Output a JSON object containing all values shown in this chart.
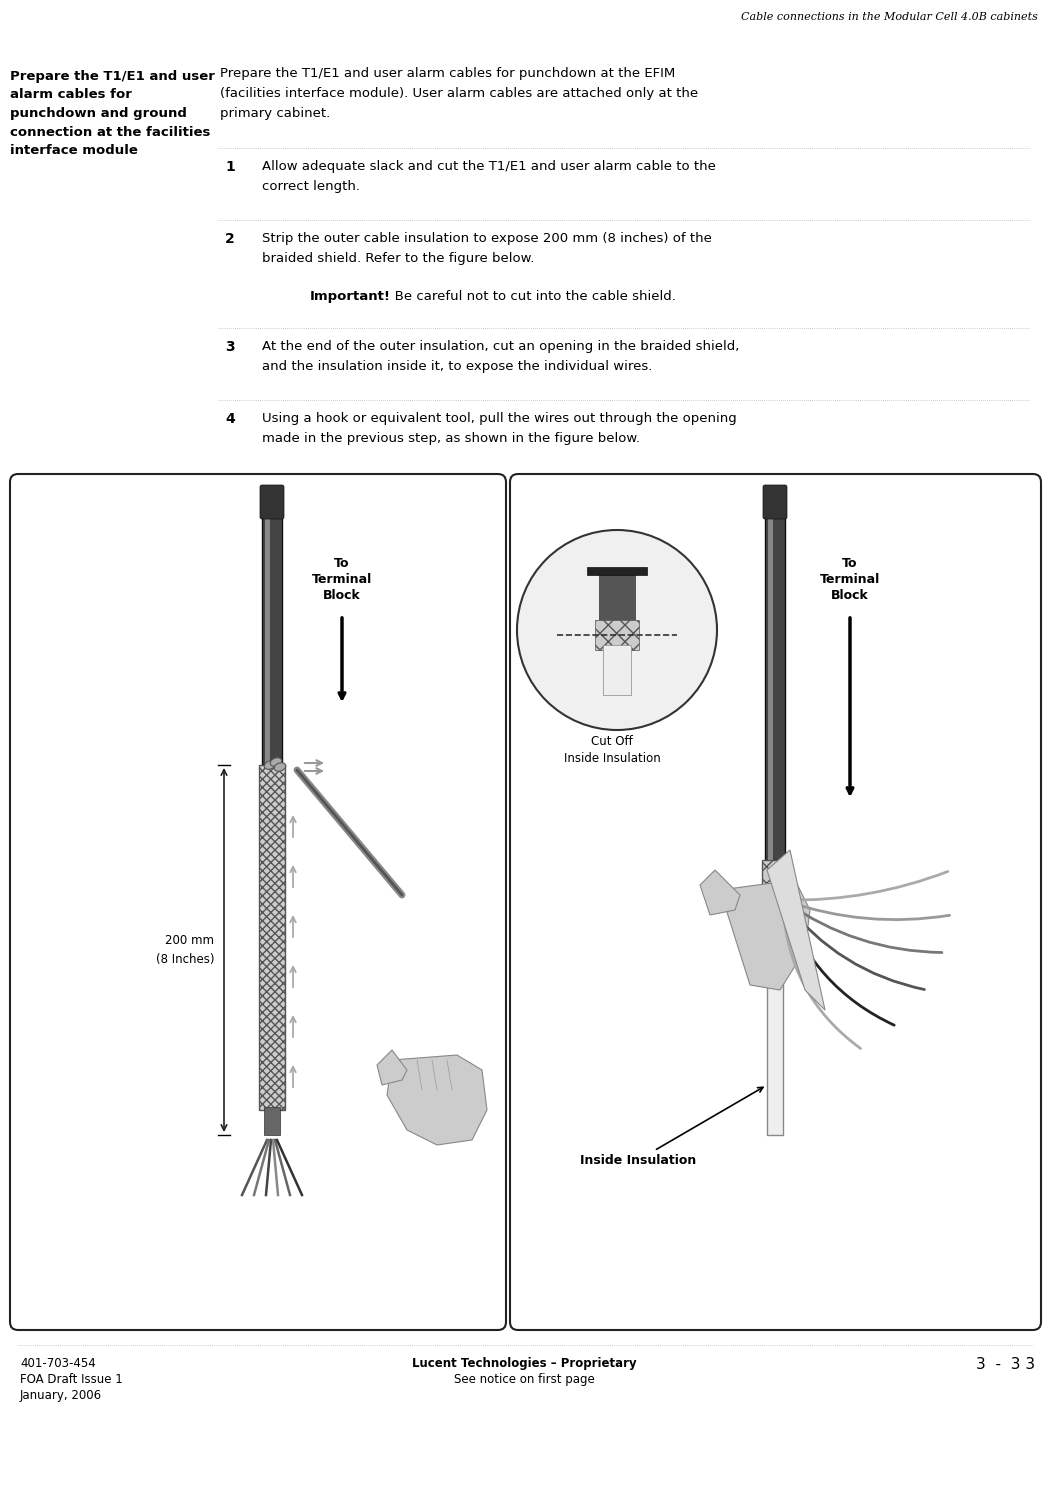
{
  "page_title": "Cable connections in the Modular Cell 4.0B cabinets",
  "left_heading": "Prepare the T1/E1 and user\nalarm cables for\npunchdown and ground\nconnection at the facilities\ninterface module",
  "intro_text_1": "Prepare the T1/E1 and user alarm cables for punchdown at the EFIM",
  "intro_text_2": "(facilities interface module). User alarm cables are attached only at the",
  "intro_text_3": "primary cabinet.",
  "step1_num": "1",
  "step1_text_1": "Allow adequate slack and cut the T1/E1 and user alarm cable to the",
  "step1_text_2": "correct length.",
  "step2_num": "2",
  "step2_text_1": "Strip the outer cable insulation to expose 200 mm (8 inches) of the",
  "step2_text_2": "braided shield. Refer to the figure below.",
  "step2_imp_bold": "Important!",
  "step2_imp_normal": "   Be careful not to cut into the cable shield.",
  "step3_num": "3",
  "step3_text_1": "At the end of the outer insulation, cut an opening in the braided shield,",
  "step3_text_2": "and the insulation inside it, to expose the individual wires.",
  "step4_num": "4",
  "step4_text_1": "Using a hook or equivalent tool, pull the wires out through the opening",
  "step4_text_2": "made in the previous step, as shown in the figure below.",
  "footer_left_1": "401-703-454",
  "footer_left_2": "FOA Draft Issue 1",
  "footer_left_3": "January, 2006",
  "footer_center_bold": "Lucent Technologies – Proprietary",
  "footer_center_normal": "See notice on first page",
  "footer_right": "3  -  3 3",
  "bg_color": "#ffffff",
  "text_color": "#000000"
}
